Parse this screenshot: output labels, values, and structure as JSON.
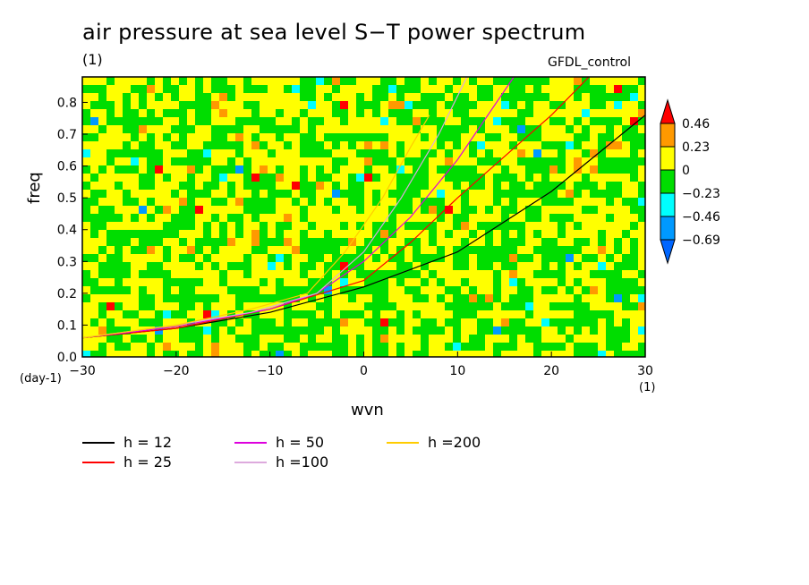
{
  "title": "air pressure at sea level S−T power spectrum",
  "units_label": "(1)",
  "model_label": "GFDL_control",
  "chart_data": {
    "type": "heatmap",
    "title": "air pressure at sea level S−T power spectrum",
    "xlabel": "wvn",
    "ylabel": "freq",
    "x_units": "(1)",
    "y_units": "(day-1)",
    "xlim": [
      -30,
      30
    ],
    "ylim": [
      0,
      0.88
    ],
    "x_ticks": [
      "−30",
      "−20",
      "−10",
      "0",
      "10",
      "20",
      "30"
    ],
    "x_tick_values": [
      -30,
      -20,
      -10,
      0,
      10,
      20,
      30
    ],
    "y_ticks": [
      "0.0",
      "0.1",
      "0.2",
      "0.3",
      "0.4",
      "0.5",
      "0.6",
      "0.7",
      "0.8"
    ],
    "y_tick_values": [
      0.0,
      0.1,
      0.2,
      0.3,
      0.4,
      0.5,
      0.6,
      0.7,
      0.8
    ],
    "colorbar": {
      "labels": [
        "0.46",
        "0.23",
        "0",
        "−0.23",
        "−0.46",
        "−0.69"
      ],
      "colors": [
        "#ff0000",
        "#ff9900",
        "#ffff00",
        "#00dd00",
        "#00ffff",
        "#0099ff",
        "#0066ff"
      ]
    },
    "series": [
      {
        "name": "h = 12",
        "color": "#000000",
        "points": [
          [
            -30,
            0.06
          ],
          [
            -20,
            0.09
          ],
          [
            -10,
            0.14
          ],
          [
            0,
            0.22
          ],
          [
            10,
            0.33
          ],
          [
            20,
            0.52
          ],
          [
            30,
            0.76
          ]
        ]
      },
      {
        "name": "h = 25",
        "color": "#ff0000",
        "points": [
          [
            -30,
            0.06
          ],
          [
            -20,
            0.09
          ],
          [
            -10,
            0.15
          ],
          [
            0,
            0.24
          ],
          [
            5,
            0.36
          ],
          [
            10,
            0.5
          ],
          [
            20,
            0.76
          ],
          [
            24,
            0.88
          ]
        ]
      },
      {
        "name": "h = 50",
        "color": "#dd00dd",
        "points": [
          [
            -30,
            0.06
          ],
          [
            -20,
            0.095
          ],
          [
            -10,
            0.15
          ],
          [
            -5,
            0.2
          ],
          [
            0,
            0.3
          ],
          [
            5,
            0.44
          ],
          [
            10,
            0.62
          ],
          [
            16,
            0.88
          ]
        ]
      },
      {
        "name": "h =100",
        "color": "#ddaadd",
        "points": [
          [
            -30,
            0.06
          ],
          [
            -20,
            0.1
          ],
          [
            -12,
            0.14
          ],
          [
            -5,
            0.2
          ],
          [
            0,
            0.33
          ],
          [
            4,
            0.5
          ],
          [
            8,
            0.7
          ],
          [
            11,
            0.88
          ]
        ]
      },
      {
        "name": "h =200",
        "color": "#ffcc00",
        "points": [
          [
            -30,
            0.06
          ],
          [
            -20,
            0.1
          ],
          [
            -12,
            0.15
          ],
          [
            -6,
            0.2
          ],
          [
            -2,
            0.33
          ],
          [
            2,
            0.5
          ],
          [
            5,
            0.66
          ],
          [
            7,
            0.76
          ]
        ]
      }
    ]
  }
}
